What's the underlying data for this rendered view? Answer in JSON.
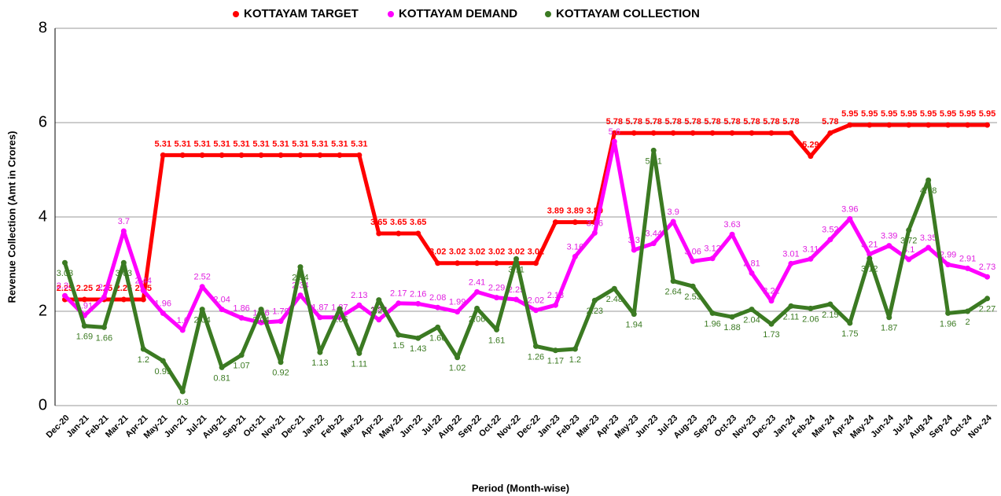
{
  "chart_data": {
    "type": "line",
    "x_label": "Period (Month-wise)",
    "y_label": "Revenue Collection (Amt in Crores)",
    "categories": [
      "Dec-20",
      "Jan-21",
      "Feb-21",
      "Mar-21",
      "Apr-21",
      "May-21",
      "Jun-21",
      "Jul-21",
      "Aug-21",
      "Sep-21",
      "Oct-21",
      "Nov-21",
      "Dec-21",
      "Jan-22",
      "Feb-22",
      "Mar-22",
      "Apr-22",
      "May-22",
      "Jun-22",
      "Jul-22",
      "Aug-22",
      "Sep-22",
      "Oct-22",
      "Nov-22",
      "Dec-22",
      "Jan-23",
      "Feb-23",
      "Mar-23",
      "Apr-23",
      "May-23",
      "Jun-23",
      "Jul-23",
      "Aug-23",
      "Sep-23",
      "Oct-23",
      "Nov-23",
      "Dec-23",
      "Jan-24",
      "Feb-24",
      "Mar-24",
      "Apr-24",
      "May-24",
      "Jun-24",
      "Jul-24",
      "Aug-24",
      "Sep-24",
      "Oct-24",
      "Nov-24"
    ],
    "series": [
      {
        "name": "KOTTAYAM TARGET",
        "color": "#ff0000",
        "values": [
          2.25,
          2.25,
          2.25,
          2.25,
          2.25,
          5.31,
          5.31,
          5.31,
          5.31,
          5.31,
          5.31,
          5.31,
          5.31,
          5.31,
          5.31,
          5.31,
          3.65,
          3.65,
          3.65,
          3.02,
          3.02,
          3.02,
          3.02,
          3.02,
          3.02,
          3.89,
          3.89,
          3.89,
          5.78,
          5.78,
          5.78,
          5.78,
          5.78,
          5.78,
          5.78,
          5.78,
          5.78,
          5.78,
          5.29,
          5.78,
          5.95,
          5.95,
          5.95,
          5.95,
          5.95,
          5.95,
          5.95,
          5.95
        ]
      },
      {
        "name": "KOTTAYAM DEMAND",
        "color": "#ff00ff",
        "values": [
          2.33,
          1.91,
          2.3,
          3.7,
          2.44,
          1.96,
          1.6,
          2.52,
          2.04,
          1.86,
          1.76,
          1.79,
          2.34,
          1.87,
          1.87,
          2.13,
          1.82,
          2.17,
          2.16,
          2.08,
          1.99,
          2.41,
          2.29,
          2.25,
          2.02,
          2.13,
          3.16,
          3.66,
          5.6,
          3.3,
          3.44,
          3.9,
          3.06,
          3.12,
          3.63,
          2.81,
          2.22,
          3.01,
          3.11,
          3.52,
          3.96,
          3.21,
          3.39,
          3.1,
          3.35,
          2.99,
          2.91,
          2.73
        ]
      },
      {
        "name": "KOTTAYAM COLLECTION",
        "color": "#3b7a22",
        "values": [
          3.03,
          1.69,
          1.66,
          3.03,
          1.2,
          0.95,
          0.3,
          2.04,
          0.81,
          1.07,
          2.04,
          0.92,
          2.94,
          1.13,
          2.05,
          1.11,
          2.24,
          1.5,
          1.43,
          1.66,
          1.02,
          2.06,
          1.61,
          3.11,
          1.26,
          1.17,
          1.2,
          2.23,
          2.48,
          1.94,
          5.41,
          2.64,
          2.53,
          1.96,
          1.88,
          2.04,
          1.73,
          2.11,
          2.06,
          2.15,
          1.75,
          3.12,
          1.87,
          3.72,
          4.78,
          1.96,
          2,
          2.27
        ]
      }
    ],
    "ylim": [
      0,
      8
    ],
    "yticks": [
      0,
      2,
      4,
      6,
      8
    ],
    "grid": true,
    "legend": "top"
  }
}
